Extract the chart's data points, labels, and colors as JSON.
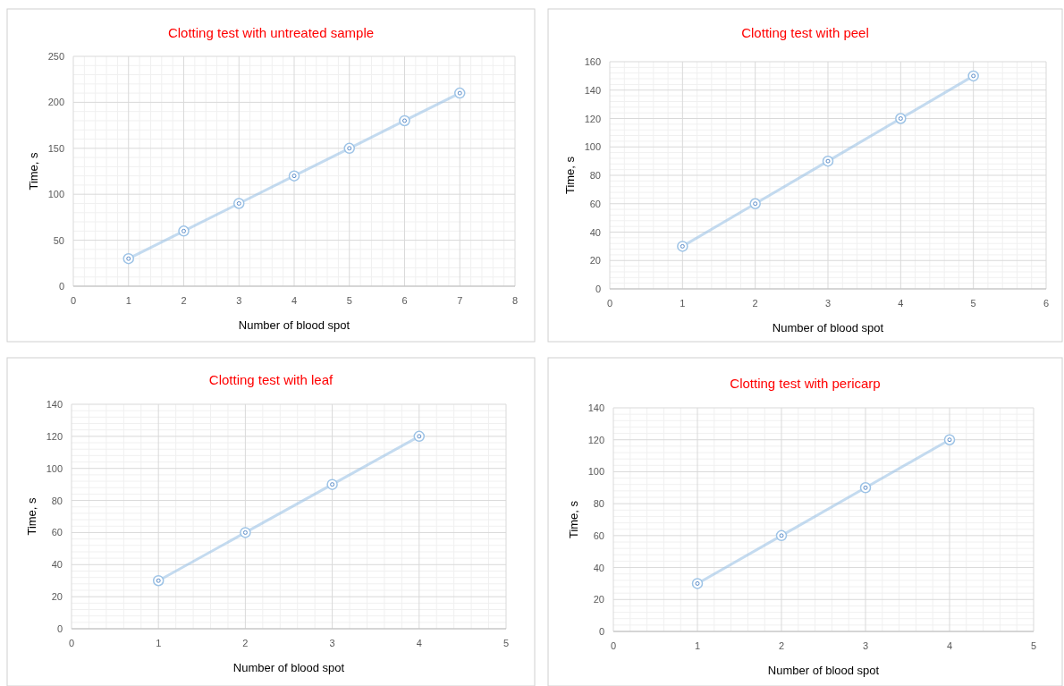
{
  "chart_data": [
    {
      "type": "line",
      "title": "Clotting test with untreated sample",
      "xlabel": "Number of blood spot",
      "ylabel": "Time, s",
      "x": [
        1,
        2,
        3,
        4,
        5,
        6,
        7
      ],
      "series": [
        {
          "color": "#9dc3e6",
          "values": [
            30,
            60,
            90,
            120,
            150,
            180,
            210
          ]
        }
      ],
      "xlim": [
        0,
        8
      ],
      "xticks": [
        0,
        1,
        2,
        3,
        4,
        5,
        6,
        7,
        8
      ],
      "ylim": [
        0,
        250
      ],
      "yticks": [
        0,
        50,
        100,
        150,
        200,
        250
      ],
      "grid": true,
      "marker": "circle"
    },
    {
      "type": "line",
      "title": "Clotting test with peel",
      "xlabel": "Number of blood spot",
      "ylabel": "Time, s",
      "x": [
        1,
        2,
        3,
        4,
        5
      ],
      "series": [
        {
          "color": "#9dc3e6",
          "values": [
            30,
            60,
            90,
            120,
            150
          ]
        }
      ],
      "xlim": [
        0,
        6
      ],
      "xticks": [
        0,
        1,
        2,
        3,
        4,
        5,
        6
      ],
      "ylim": [
        0,
        160
      ],
      "yticks": [
        0,
        20,
        40,
        60,
        80,
        100,
        120,
        140,
        160
      ],
      "grid": true,
      "marker": "circle"
    },
    {
      "type": "line",
      "title": "Clotting test with leaf",
      "xlabel": "Number of blood spot",
      "ylabel": "Time, s",
      "x": [
        1,
        2,
        3,
        4
      ],
      "series": [
        {
          "color": "#9dc3e6",
          "values": [
            30,
            60,
            90,
            120
          ]
        }
      ],
      "xlim": [
        0,
        5
      ],
      "xticks": [
        0,
        1,
        2,
        3,
        4,
        5
      ],
      "ylim": [
        0,
        140
      ],
      "yticks": [
        0,
        20,
        40,
        60,
        80,
        100,
        120,
        140
      ],
      "grid": true,
      "marker": "circle"
    },
    {
      "type": "line",
      "title": "Clotting test with pericarp",
      "xlabel": "Number of blood spot",
      "ylabel": "Time, s",
      "x": [
        1,
        2,
        3,
        4
      ],
      "series": [
        {
          "color": "#9dc3e6",
          "values": [
            30,
            60,
            90,
            120
          ]
        }
      ],
      "xlim": [
        0,
        5
      ],
      "xticks": [
        0,
        1,
        2,
        3,
        4,
        5
      ],
      "ylim": [
        0,
        140
      ],
      "yticks": [
        0,
        20,
        40,
        60,
        80,
        100,
        120,
        140
      ],
      "grid": true,
      "marker": "circle"
    }
  ]
}
